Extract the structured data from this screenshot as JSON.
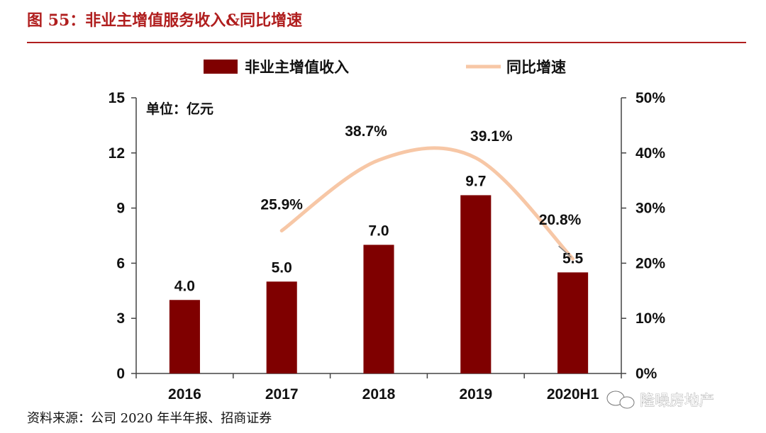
{
  "figure_title": "图 55：非业主增值服务收入&同比增速",
  "source_text": "资料来源：公司 2020 年半年报、招商证券",
  "watermark_text": "隆噪房地产",
  "watermark_icon": "wechat-icon",
  "colors": {
    "title": "#b01e1e",
    "bar": "#7f0000",
    "line": "#f7c7a6",
    "rule": "#b01e1e",
    "axis": "#444444"
  },
  "chart_data": {
    "type": "bar",
    "categories": [
      "2016",
      "2017",
      "2018",
      "2019",
      "2020H1"
    ],
    "series": [
      {
        "name": "非业主增值收入",
        "type": "bar",
        "axis": "left",
        "values": [
          4.0,
          5.0,
          7.0,
          9.7,
          5.5
        ],
        "labels": [
          "4.0",
          "5.0",
          "7.0",
          "9.7",
          "5.5"
        ]
      },
      {
        "name": "同比增速",
        "type": "line",
        "axis": "right",
        "values": [
          null,
          25.9,
          38.7,
          39.1,
          20.8
        ],
        "labels": [
          "",
          "25.9%",
          "38.7%",
          "39.1%",
          "20.8%"
        ]
      }
    ],
    "unit_label": "单位：亿元",
    "y_left": {
      "min": 0,
      "max": 15,
      "ticks": [
        "0",
        "3",
        "6",
        "9",
        "12",
        "15"
      ]
    },
    "y_right": {
      "min": 0,
      "max": 50,
      "ticks": [
        "0%",
        "10%",
        "20%",
        "30%",
        "40%",
        "50%"
      ]
    },
    "legend_position": "top"
  }
}
